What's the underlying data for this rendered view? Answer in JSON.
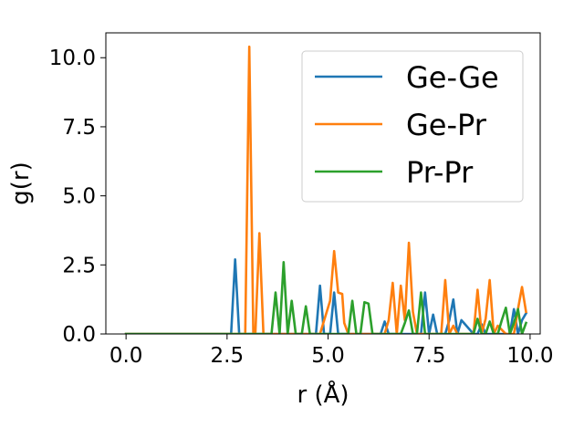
{
  "chart_data": {
    "type": "line",
    "title": "",
    "xlabel": "r (Å)",
    "ylabel": "g(r)",
    "xlim": [
      -0.5,
      10.25
    ],
    "ylim": [
      0,
      10.9
    ],
    "xticks": [
      0.0,
      2.5,
      5.0,
      7.5,
      10.0
    ],
    "xtick_labels": [
      "0.0",
      "2.5",
      "5.0",
      "7.5",
      "10.0"
    ],
    "yticks": [
      0.0,
      2.5,
      5.0,
      7.5,
      10.0
    ],
    "ytick_labels": [
      "0.0",
      "2.5",
      "5.0",
      "7.5",
      "10.0"
    ],
    "grid": false,
    "legend_position": "upper right",
    "series": [
      {
        "name": "Ge-Ge",
        "color": "#1f77b4",
        "x": [
          0.0,
          2.6,
          2.7,
          2.8,
          2.85,
          4.6,
          4.7,
          4.8,
          4.9,
          5.05,
          5.15,
          5.25,
          6.3,
          6.4,
          6.5,
          7.3,
          7.4,
          7.5,
          7.6,
          7.7,
          7.75,
          7.9,
          8.0,
          8.1,
          8.2,
          8.3,
          8.6,
          8.7,
          8.8,
          8.9,
          9.4,
          9.5,
          9.6,
          9.7,
          9.8,
          9.9
        ],
        "y": [
          0.0,
          0.0,
          2.7,
          0.0,
          0.0,
          0.0,
          0.0,
          1.75,
          0.0,
          0.0,
          1.5,
          0.0,
          0.0,
          0.45,
          0.0,
          0.0,
          1.5,
          0.0,
          0.7,
          0.0,
          0.0,
          0.0,
          0.5,
          1.25,
          0.0,
          0.5,
          0.0,
          0.0,
          0.35,
          0.0,
          0.0,
          0.0,
          0.9,
          0.0,
          0.5,
          0.75
        ]
      },
      {
        "name": "Ge-Pr",
        "color": "#ff7f0e",
        "x": [
          0.0,
          2.95,
          3.05,
          3.15,
          3.2,
          3.3,
          3.4,
          4.8,
          5.05,
          5.15,
          5.25,
          5.35,
          5.4,
          5.5,
          6.4,
          6.5,
          6.6,
          6.7,
          6.8,
          6.9,
          7.0,
          7.1,
          7.2,
          7.5,
          7.8,
          7.9,
          8.0,
          8.1,
          8.2,
          8.6,
          8.7,
          8.8,
          8.9,
          9.0,
          9.1,
          9.2,
          9.4,
          9.6,
          9.7,
          9.8,
          9.9
        ],
        "y": [
          0.0,
          0.0,
          10.4,
          0.0,
          0.0,
          3.65,
          0.0,
          0.0,
          1.2,
          3.0,
          1.5,
          1.45,
          0.4,
          0.0,
          0.0,
          0.5,
          1.85,
          0.0,
          1.75,
          0.5,
          3.3,
          0.8,
          0.0,
          0.0,
          0.0,
          1.95,
          0.0,
          0.3,
          0.0,
          0.0,
          1.6,
          0.0,
          0.55,
          1.95,
          0.0,
          0.3,
          0.0,
          0.0,
          0.9,
          1.7,
          0.8
        ]
      },
      {
        "name": "Pr-Pr",
        "color": "#2ca02c",
        "x": [
          0.0,
          3.5,
          3.6,
          3.7,
          3.8,
          3.9,
          4.0,
          4.1,
          4.2,
          4.35,
          4.45,
          4.55,
          5.5,
          5.6,
          5.7,
          5.8,
          5.9,
          6.0,
          6.1,
          6.2,
          6.8,
          6.9,
          7.0,
          7.1,
          7.2,
          7.3,
          7.4,
          7.5,
          7.6,
          7.7,
          8.5,
          8.6,
          8.7,
          8.8,
          8.9,
          9.0,
          9.1,
          9.2,
          9.3,
          9.4,
          9.5,
          9.6,
          9.7,
          9.8,
          9.9
        ],
        "y": [
          0.0,
          0.0,
          0.0,
          1.5,
          0.0,
          2.6,
          0.0,
          1.2,
          0.0,
          0.0,
          1.0,
          0.0,
          0.0,
          1.2,
          0.0,
          0.0,
          1.15,
          1.1,
          0.0,
          0.0,
          0.0,
          0.4,
          0.85,
          0.0,
          0.0,
          1.5,
          0.0,
          0.0,
          0.0,
          0.0,
          0.0,
          0.0,
          0.55,
          0.0,
          0.0,
          0.45,
          0.0,
          0.0,
          0.5,
          0.95,
          0.0,
          0.4,
          0.9,
          0.0,
          0.4
        ]
      }
    ]
  }
}
